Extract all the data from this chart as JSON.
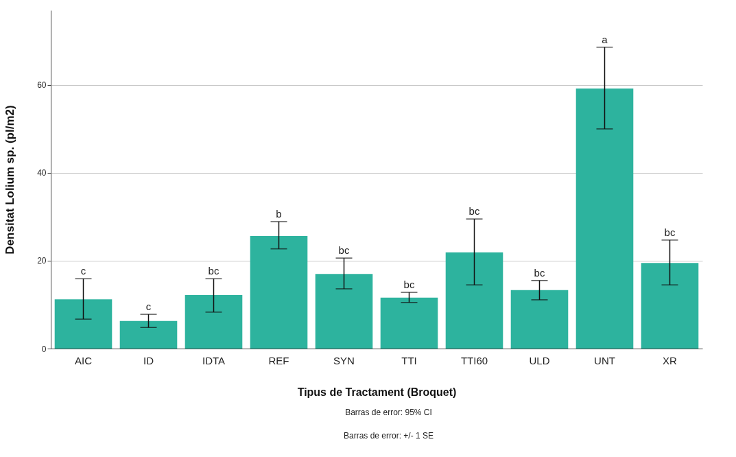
{
  "chart_data": {
    "type": "bar",
    "xlabel": "Tipus de Tractament (Broquet)",
    "ylabel": "Densitat Lolium sp. (pl/m2)",
    "categories": [
      "AIC",
      "ID",
      "IDTA",
      "REF",
      "SYN",
      "TTI",
      "TTI60",
      "ULD",
      "UNT",
      "XR"
    ],
    "values": [
      11.2,
      6.3,
      12.2,
      25.6,
      17.0,
      11.6,
      21.9,
      13.3,
      59.2,
      19.5
    ],
    "errors": [
      [
        6.7,
        15.9
      ],
      [
        4.8,
        7.8
      ],
      [
        8.3,
        15.9
      ],
      [
        22.7,
        28.9
      ],
      [
        13.6,
        20.6
      ],
      [
        10.5,
        12.8
      ],
      [
        14.5,
        29.5
      ],
      [
        11.1,
        15.5
      ],
      [
        50.0,
        68.6
      ],
      [
        14.5,
        24.7
      ]
    ],
    "color": "#2db39e",
    "ylim": [
      0,
      77
    ],
    "yticks": [
      0,
      20,
      40,
      60
    ],
    "grid": "y",
    "annotations": [
      {
        "text": "c",
        "x": "AIC",
        "y": 15.9
      },
      {
        "text": "c",
        "x": "ID",
        "y": 7.8
      },
      {
        "text": "bc",
        "x": "IDTA",
        "y": 15.9
      },
      {
        "text": "b",
        "x": "REF",
        "y": 28.9
      },
      {
        "text": "bc",
        "x": "SYN",
        "y": 20.6
      },
      {
        "text": "bc",
        "x": "TTI",
        "y": 12.8
      },
      {
        "text": "bc",
        "x": "TTI60",
        "y": 29.5
      },
      {
        "text": "bc",
        "x": "ULD",
        "y": 15.5
      },
      {
        "text": "a",
        "x": "UNT",
        "y": 68.6
      },
      {
        "text": "bc",
        "x": "XR",
        "y": 24.7
      },
      "Barras de error: 95% CI",
      "Barras de error: +/- 1 SE"
    ]
  }
}
